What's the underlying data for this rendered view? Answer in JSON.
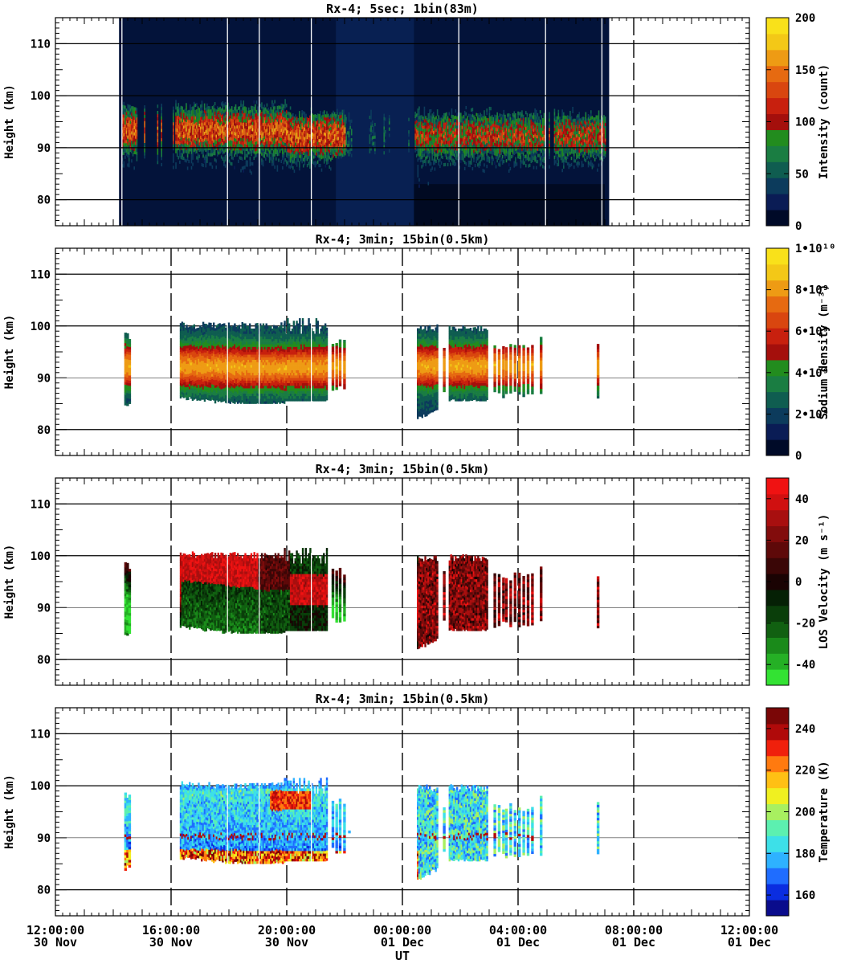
{
  "chart_data": [
    {
      "type": "heatmap",
      "title": "Rx-4;  5sec; 1bin(83m)",
      "ylabel": "Height (km)",
      "ylim": [
        75,
        115
      ],
      "yticks": [
        "80",
        "90",
        "100",
        "110"
      ],
      "colorbar": {
        "label": "Intensity (count)",
        "ticks": [
          "0",
          "50",
          "100",
          "150",
          "200"
        ],
        "range": [
          0,
          200
        ],
        "colors": [
          "#000a28",
          "#0a1c55",
          "#0c3b5c",
          "#0f5d50",
          "#1a7d42",
          "#228c1e",
          "#a40f0c",
          "#c8200e",
          "#d9460f",
          "#e66a11",
          "#ee9b14",
          "#f3c817",
          "#f9e11a"
        ]
      },
      "data_ranges": {
        "active_start": "14:00 30 Nov",
        "active_end": "06:45 01 Dec",
        "layer_peak_km": 92
      }
    },
    {
      "type": "heatmap",
      "title": "Rx-4; 3min; 15bin(0.5km)",
      "ylabel": "Height (km)",
      "ylim": [
        75,
        115
      ],
      "yticks": [
        "80",
        "90",
        "100",
        "110"
      ],
      "colorbar": {
        "label": "Sodium density (m⁻³)",
        "ticks": [
          "0",
          "2•10⁹",
          "4•10⁹",
          "6•10⁹",
          "8•10⁹",
          "1•10¹⁰"
        ],
        "range": [
          0,
          10000000000
        ],
        "colors": [
          "#000a28",
          "#0a1c55",
          "#0c3b5c",
          "#0f5d50",
          "#1a7d42",
          "#228c1e",
          "#a40f0c",
          "#c8200e",
          "#d9460f",
          "#e66a11",
          "#ee9b14",
          "#f3c817",
          "#f9e11a"
        ]
      }
    },
    {
      "type": "heatmap",
      "title": "Rx-4; 3min; 15bin(0.5km)",
      "ylabel": "Height (km)",
      "ylim": [
        75,
        115
      ],
      "yticks": [
        "80",
        "90",
        "100",
        "110"
      ],
      "colorbar": {
        "label": "LOS Velocity (m s⁻¹)",
        "ticks": [
          "-40",
          "-20",
          "0",
          "20",
          "40"
        ],
        "range": [
          -50,
          50
        ],
        "colors": [
          "#33e233",
          "#25b025",
          "#1a8a1a",
          "#116011",
          "#0a3e0a",
          "#052005",
          "#1a0303",
          "#3a0606",
          "#5e0909",
          "#820c0c",
          "#a80f0f",
          "#d01010",
          "#f01212"
        ]
      }
    },
    {
      "type": "heatmap",
      "title": "Rx-4; 3min; 15bin(0.5km)",
      "ylabel": "Height (km)",
      "ylim": [
        75,
        115
      ],
      "yticks": [
        "80",
        "90",
        "100",
        "110"
      ],
      "colorbar": {
        "label": "Temperature (K)",
        "ticks": [
          "160",
          "180",
          "200",
          "220",
          "240"
        ],
        "range": [
          150,
          250
        ],
        "colors": [
          "#0a0c8c",
          "#0a2de0",
          "#1f6dff",
          "#2eb2ff",
          "#3de0e8",
          "#5cf0b0",
          "#a8f060",
          "#f0f020",
          "#ffc014",
          "#ff7a0f",
          "#f0200c",
          "#b00a0a",
          "#7a0606"
        ]
      }
    }
  ],
  "x_axis": {
    "xlabel": "UT",
    "xlim_hours": [
      0,
      24
    ],
    "ticks": [
      {
        "time": "12:00:00",
        "date": "30 Nov"
      },
      {
        "time": "16:00:00",
        "date": "30 Nov"
      },
      {
        "time": "20:00:00",
        "date": "30 Nov"
      },
      {
        "time": "00:00:00",
        "date": "01 Dec"
      },
      {
        "time": "04:00:00",
        "date": "01 Dec"
      },
      {
        "time": "08:00:00",
        "date": "01 Dec"
      },
      {
        "time": "12:00:00",
        "date": "01 Dec"
      }
    ]
  }
}
